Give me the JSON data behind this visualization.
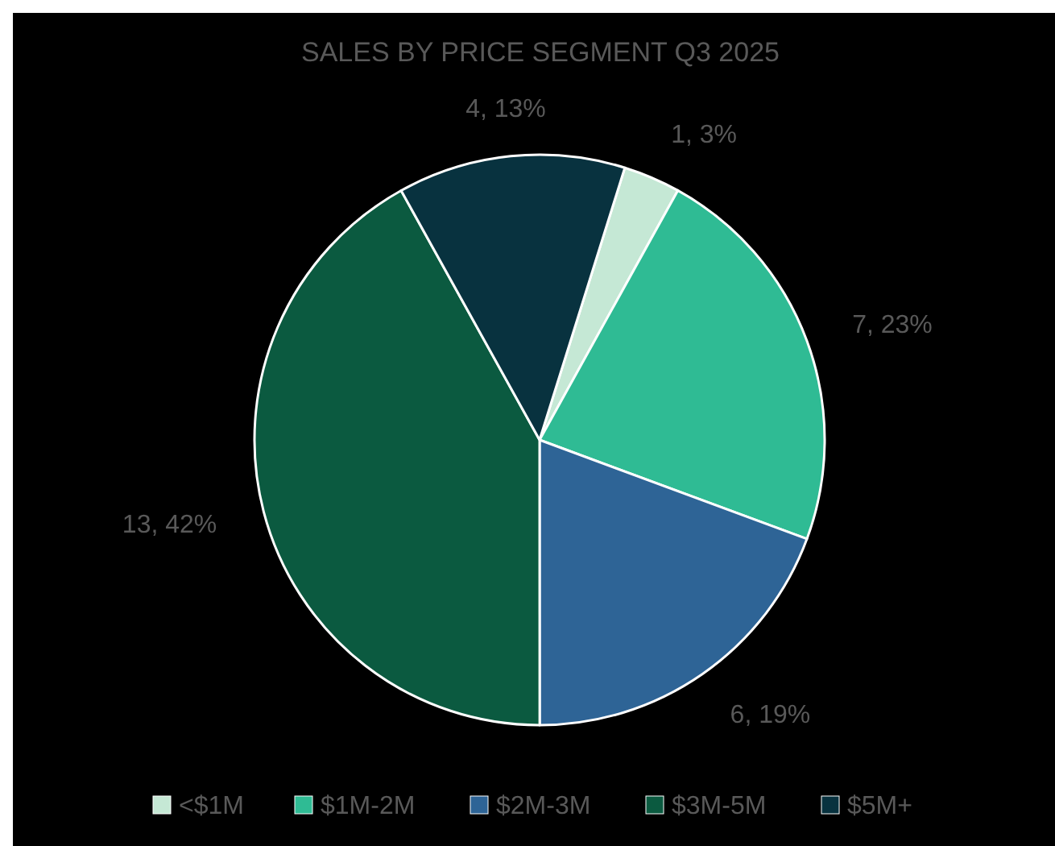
{
  "chart_data": {
    "type": "pie",
    "title": "SALES BY PRICE SEGMENT Q3 2025",
    "categories": [
      "<$1M",
      "$1M-2M",
      "$2M-3M",
      "$3M-5M",
      "$5M+"
    ],
    "values": [
      1,
      7,
      6,
      13,
      4
    ],
    "value_labels": [
      "1, 3%",
      "7, 23%",
      "6, 19%",
      "13, 42%",
      "4, 13%"
    ],
    "colors": [
      "#c5e8d5",
      "#2fbb94",
      "#2e6496",
      "#0b5a40",
      "#08323f"
    ],
    "legend": "bottom"
  }
}
